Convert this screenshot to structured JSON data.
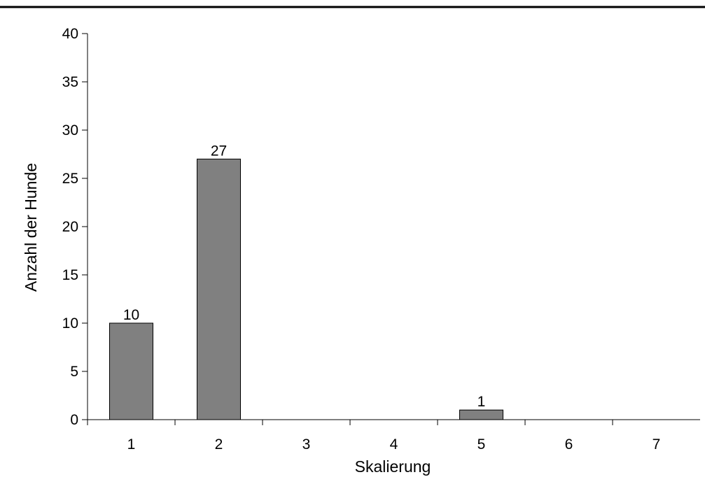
{
  "chart_data": {
    "type": "bar",
    "title": "",
    "xlabel": "Skalierung",
    "ylabel": "Anzahl der Hunde",
    "categories": [
      "1",
      "2",
      "3",
      "4",
      "5",
      "6",
      "7"
    ],
    "values": [
      10,
      27,
      0,
      0,
      1,
      0,
      0
    ],
    "data_labels": [
      "10",
      "27",
      "",
      "",
      "1",
      "",
      ""
    ],
    "ylim": [
      0,
      40
    ],
    "yticks": [
      "0",
      "5",
      "10",
      "15",
      "20",
      "25",
      "30",
      "35",
      "40"
    ],
    "grid": false,
    "legend": "none",
    "colors": {
      "bar_fill": "#808080",
      "bar_stroke": "#000000",
      "axis": "#000000",
      "text": "#000000"
    }
  }
}
